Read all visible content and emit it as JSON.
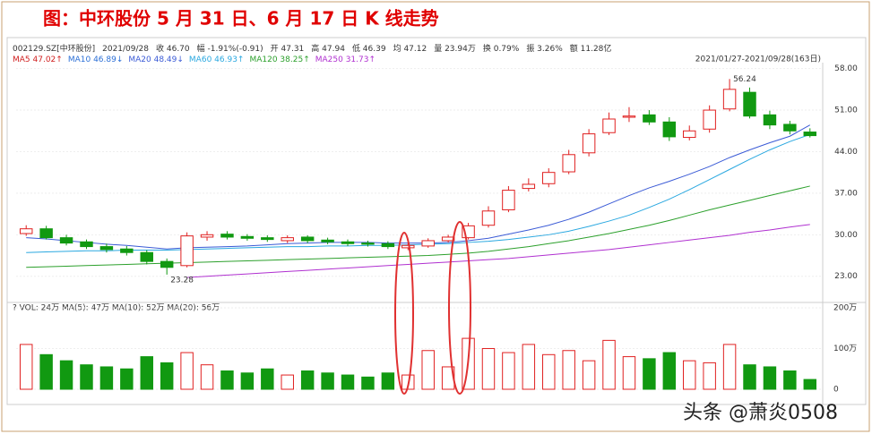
{
  "title": "图：中环股份 5 月 31 日、6 月 17 日 K 线走势",
  "info": [
    "002129.SZ[中环股份]",
    "2021/09/28",
    "收 46.70",
    "幅 -1.91%(-0.91)",
    "开 47.31",
    "高 47.94",
    "低 46.39",
    "均 47.12",
    "量 23.94万",
    "换 0.79%",
    "振 3.26%",
    "额 11.28亿"
  ],
  "ma_legend": [
    {
      "text": "MA5 47.02↑",
      "color": "#d02020"
    },
    {
      "text": "MA10 46.89↓",
      "color": "#2b6fd6"
    },
    {
      "text": "MA20 48.49↓",
      "color": "#3b5bd6"
    },
    {
      "text": "MA60 46.93↑",
      "color": "#2aa8e0"
    },
    {
      "text": "MA120 38.25↑",
      "color": "#2ca02c"
    },
    {
      "text": "MA250 31.73↑",
      "color": "#b030d0"
    }
  ],
  "range": "2021/01/27-2021/09/28(163日)",
  "vol_legend": "?  VOL: 24万  MA(5): 47万  MA(10): 52万  MA(20): 56万",
  "watermark": "头条 @萧炎0508",
  "chart_data": {
    "type": "candlestick",
    "open": [
      30.2,
      31.0,
      29.5,
      28.8,
      28.0,
      27.6,
      27.0,
      25.5,
      24.8,
      29.6,
      30.1,
      29.7,
      29.5,
      29.0,
      29.6,
      29.1,
      28.8,
      28.6,
      28.5,
      27.8,
      28.1,
      29.0,
      29.5,
      31.6,
      34.2,
      37.8,
      38.6,
      40.6,
      43.8,
      47.2,
      49.8,
      50.2,
      49.0,
      46.4,
      47.8,
      51.2,
      54.0,
      50.2,
      48.6,
      47.31
    ],
    "high": [
      31.6,
      31.5,
      30.0,
      29.2,
      28.5,
      28.1,
      27.4,
      26.0,
      30.4,
      30.6,
      30.6,
      30.1,
      29.9,
      29.9,
      29.9,
      29.5,
      29.2,
      29.0,
      28.9,
      28.6,
      29.4,
      30.0,
      32.0,
      34.8,
      38.2,
      39.5,
      41.2,
      44.3,
      47.8,
      50.6,
      51.5,
      51.0,
      49.8,
      48.4,
      51.8,
      56.24,
      54.8,
      50.9,
      49.2,
      47.94
    ],
    "low": [
      29.8,
      29.2,
      28.2,
      27.6,
      27.0,
      26.5,
      25.0,
      23.28,
      24.5,
      29.0,
      29.2,
      29.0,
      28.8,
      28.6,
      28.6,
      28.4,
      28.1,
      28.0,
      27.6,
      27.4,
      27.8,
      28.7,
      29.2,
      31.2,
      33.8,
      37.3,
      38.0,
      40.2,
      43.2,
      46.8,
      49.0,
      48.5,
      45.8,
      45.9,
      47.2,
      50.8,
      49.6,
      47.8,
      46.9,
      46.39
    ],
    "close": [
      31.0,
      29.5,
      28.6,
      28.0,
      27.5,
      27.0,
      25.5,
      24.5,
      29.8,
      30.0,
      29.6,
      29.4,
      29.2,
      29.5,
      29.0,
      28.8,
      28.5,
      28.4,
      28.0,
      28.2,
      29.0,
      29.6,
      31.5,
      34.0,
      37.5,
      38.5,
      40.5,
      43.5,
      47.0,
      49.5,
      50.0,
      49.0,
      46.5,
      47.5,
      51.0,
      54.5,
      50.0,
      48.5,
      47.5,
      46.7
    ],
    "volume": [
      110,
      85,
      70,
      60,
      55,
      50,
      80,
      65,
      90,
      60,
      45,
      40,
      50,
      35,
      45,
      40,
      35,
      30,
      40,
      35,
      95,
      55,
      125,
      100,
      90,
      110,
      85,
      95,
      70,
      120,
      80,
      75,
      90,
      70,
      65,
      110,
      60,
      55,
      45,
      24
    ],
    "lines": [
      {
        "color": "#3b5bd6",
        "values": [
          29.5,
          29.3,
          29.0,
          28.7,
          28.4,
          28.2,
          27.9,
          27.6,
          27.8,
          27.9,
          28.0,
          28.1,
          28.3,
          28.5,
          28.6,
          28.7,
          28.7,
          28.7,
          28.6,
          28.6,
          28.6,
          28.7,
          29.0,
          29.4,
          30.1,
          30.8,
          31.6,
          32.6,
          33.8,
          35.2,
          36.6,
          37.9,
          39.0,
          40.2,
          41.5,
          43.0,
          44.3,
          45.5,
          46.6,
          48.5
        ]
      },
      {
        "color": "#2aa8e0",
        "values": [
          27.0,
          27.1,
          27.2,
          27.3,
          27.3,
          27.4,
          27.4,
          27.4,
          27.5,
          27.6,
          27.7,
          27.8,
          27.9,
          28.0,
          28.0,
          28.1,
          28.1,
          28.2,
          28.2,
          28.3,
          28.4,
          28.5,
          28.7,
          28.9,
          29.2,
          29.6,
          30.0,
          30.6,
          31.4,
          32.3,
          33.3,
          34.6,
          36.0,
          37.6,
          39.3,
          41.0,
          42.7,
          44.3,
          45.7,
          46.9
        ]
      },
      {
        "color": "#2ca02c",
        "values": [
          24.5,
          24.6,
          24.7,
          24.8,
          24.9,
          25.0,
          25.1,
          25.2,
          25.3,
          25.4,
          25.5,
          25.6,
          25.7,
          25.8,
          25.9,
          26.0,
          26.1,
          26.2,
          26.3,
          26.4,
          26.5,
          26.7,
          26.9,
          27.2,
          27.6,
          28.0,
          28.5,
          29.0,
          29.6,
          30.2,
          30.9,
          31.6,
          32.4,
          33.3,
          34.2,
          35.0,
          35.8,
          36.6,
          37.4,
          38.2
        ]
      },
      {
        "color": "#b030d0",
        "values": [
          null,
          null,
          null,
          null,
          null,
          null,
          null,
          null,
          22.8,
          23.0,
          23.2,
          23.4,
          23.6,
          23.8,
          24.0,
          24.2,
          24.4,
          24.6,
          24.8,
          25.0,
          25.2,
          25.4,
          25.6,
          25.8,
          26.0,
          26.3,
          26.6,
          26.9,
          27.2,
          27.5,
          27.9,
          28.3,
          28.7,
          29.1,
          29.5,
          29.9,
          30.4,
          30.8,
          31.3,
          31.73
        ]
      }
    ],
    "annotations": [
      "56.24",
      "23.28"
    ],
    "up_color": "#e02020",
    "down_color": "#119911",
    "ylim": [
      21,
      59
    ],
    "yticks": [
      {
        "value": 58,
        "label": "58.00"
      },
      {
        "value": 51,
        "label": "51.00"
      },
      {
        "value": 44,
        "label": "44.00"
      },
      {
        "value": 37,
        "label": "37.00"
      },
      {
        "value": 30,
        "label": "30.00"
      },
      {
        "value": 23,
        "label": "23.00"
      }
    ],
    "vol_ylim": [
      0,
      210
    ],
    "vol_yticks": [
      {
        "value": 200,
        "label": "200万"
      },
      {
        "value": 100,
        "label": "100万"
      },
      0
    ]
  }
}
